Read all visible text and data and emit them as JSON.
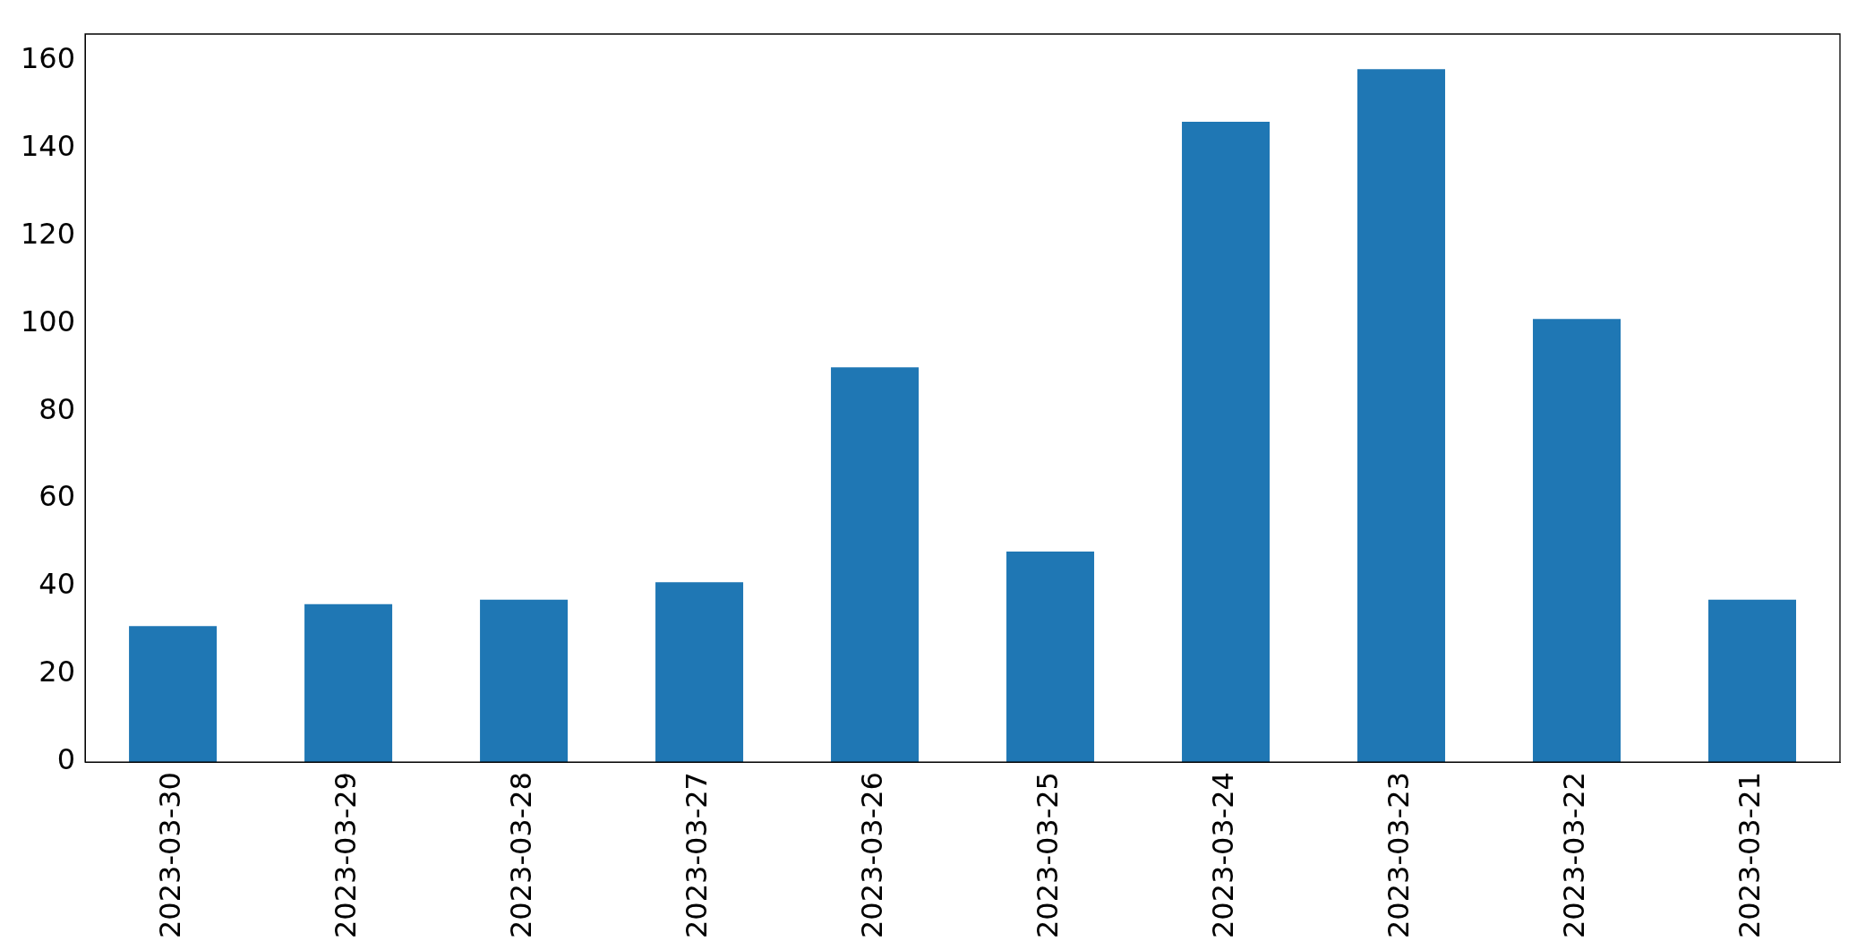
{
  "chart_data": {
    "type": "bar",
    "categories": [
      "2023-03-30",
      "2023-03-29",
      "2023-03-28",
      "2023-03-27",
      "2023-03-26",
      "2023-03-25",
      "2023-03-24",
      "2023-03-23",
      "2023-03-22",
      "2023-03-21"
    ],
    "values": [
      31,
      36,
      37,
      41,
      90,
      48,
      146,
      158,
      101,
      37
    ],
    "color": "#1f77b4",
    "ylim": [
      0,
      166
    ],
    "yticks": [
      0,
      20,
      40,
      60,
      80,
      100,
      120,
      140,
      160
    ],
    "grid": false,
    "legend": false
  }
}
